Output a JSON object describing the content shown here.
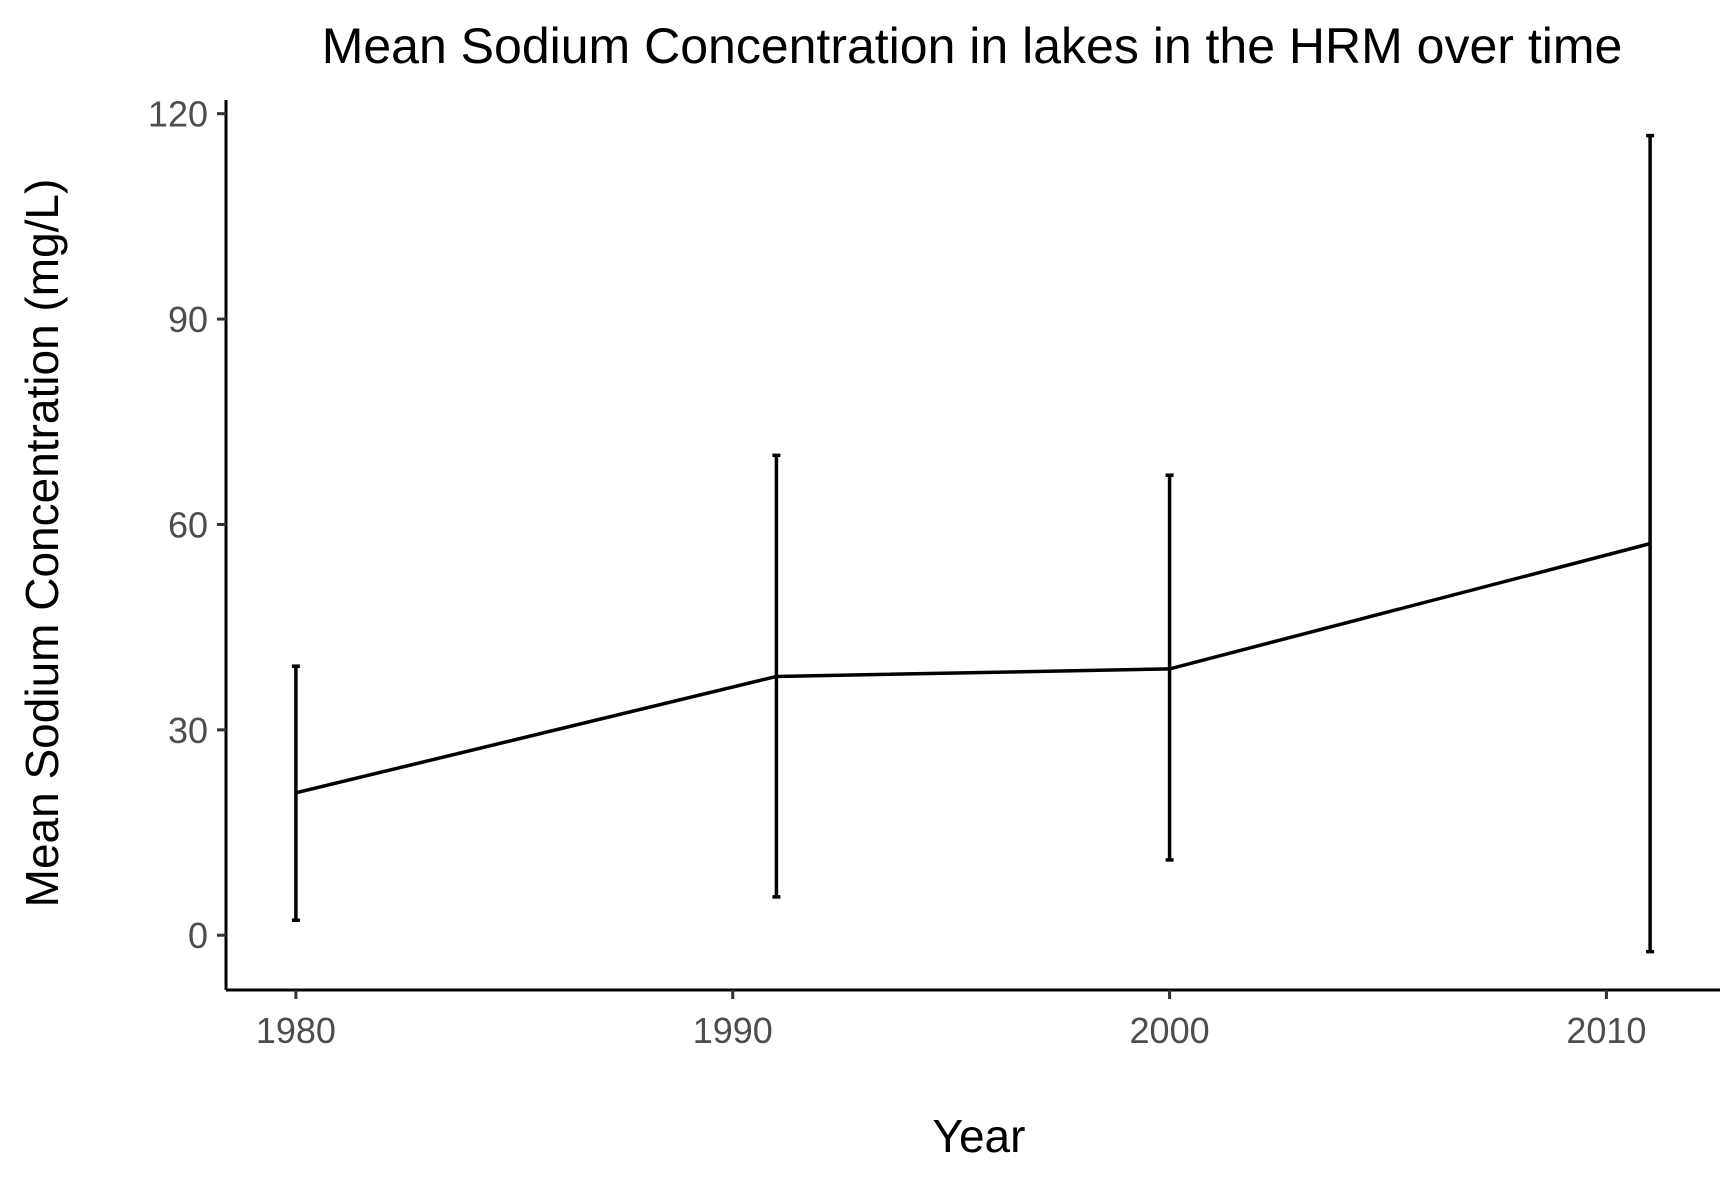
{
  "chart_data": {
    "type": "line",
    "title": "Mean Sodium Concentration in lakes in the HRM over time",
    "xlabel": "Year",
    "ylabel": "Mean Sodium Concentration (mg/L)",
    "xlim": [
      1978.4,
      2012.6
    ],
    "ylim": [
      -8,
      122
    ],
    "xticks": [
      1980,
      1990,
      2000,
      2010
    ],
    "yticks": [
      0,
      30,
      60,
      90,
      120
    ],
    "grid": false,
    "legend": "none",
    "line_color": "#000000",
    "series": [
      {
        "x": [
          1980,
          1991,
          2000,
          2011
        ],
        "y": [
          20.8,
          37.8,
          38.9,
          57.2
        ],
        "error_low": [
          2.2,
          5.6,
          11.0,
          -2.4
        ],
        "error_high": [
          39.3,
          70.1,
          67.2,
          116.8
        ]
      }
    ]
  }
}
